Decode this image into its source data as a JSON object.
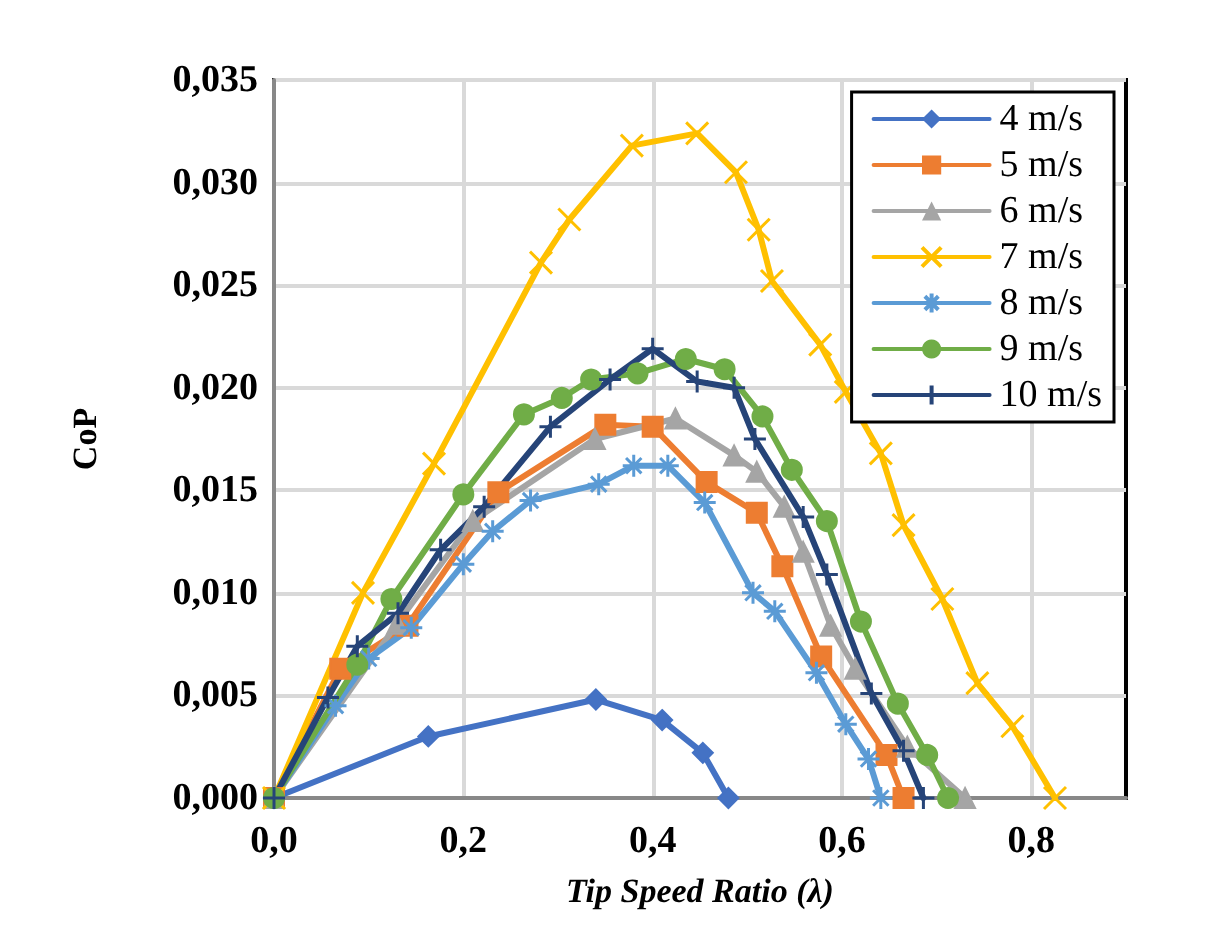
{
  "chart_data": {
    "type": "line",
    "xlabel": "Tip Speed Ratio (λ)",
    "ylabel": "CoP",
    "xlim": [
      0,
      0.9
    ],
    "ylim": [
      0,
      0.035
    ],
    "xticks": [
      {
        "value": 0,
        "label": "0,0"
      },
      {
        "value": 0.2,
        "label": "0,2"
      },
      {
        "value": 0.4,
        "label": "0,4"
      },
      {
        "value": 0.6,
        "label": "0,6"
      },
      {
        "value": 0.8,
        "label": "0,8"
      }
    ],
    "yticks": [
      {
        "value": 0,
        "label": "0,000"
      },
      {
        "value": 0.005,
        "label": "0,005"
      },
      {
        "value": 0.01,
        "label": "0,010"
      },
      {
        "value": 0.015,
        "label": "0,015"
      },
      {
        "value": 0.02,
        "label": "0,020"
      },
      {
        "value": 0.025,
        "label": "0,025"
      },
      {
        "value": 0.03,
        "label": "0,030"
      },
      {
        "value": 0.035,
        "label": "0,035"
      }
    ],
    "grid": true,
    "legend": "top right",
    "line_style": "solid",
    "series": [
      {
        "name": "4 m/s",
        "color": "#4472c4",
        "marker": "diamond",
        "x": [
          0,
          0.163,
          0.34,
          0.41,
          0.453,
          0.48
        ],
        "values": [
          0,
          0.003,
          0.0048,
          0.0038,
          0.0022,
          0
        ]
      },
      {
        "name": "5 m/s",
        "color": "#ed7d31",
        "marker": "square",
        "x": [
          0,
          0.07,
          0.141,
          0.237,
          0.35,
          0.4,
          0.457,
          0.51,
          0.537,
          0.578,
          0.647,
          0.665
        ],
        "values": [
          0,
          0.0063,
          0.0084,
          0.0149,
          0.0182,
          0.0181,
          0.0154,
          0.0139,
          0.0113,
          0.0069,
          0.0021,
          0
        ]
      },
      {
        "name": "6 m/s",
        "color": "#a5a5a5",
        "marker": "triangle",
        "x": [
          0,
          0.13,
          0.21,
          0.339,
          0.424,
          0.486,
          0.51,
          0.539,
          0.559,
          0.588,
          0.614,
          0.669,
          0.73
        ],
        "values": [
          0,
          0.0085,
          0.0135,
          0.0175,
          0.0185,
          0.0167,
          0.0159,
          0.0142,
          0.012,
          0.0084,
          0.0063,
          0.0025,
          0
        ]
      },
      {
        "name": "7 m/s",
        "color": "#ffc000",
        "marker": "cross",
        "x": [
          0,
          0.094,
          0.169,
          0.282,
          0.312,
          0.378,
          0.447,
          0.488,
          0.512,
          0.526,
          0.577,
          0.604,
          0.641,
          0.665,
          0.706,
          0.743,
          0.78,
          0.825
        ],
        "values": [
          0,
          0.01,
          0.0163,
          0.0261,
          0.0282,
          0.0318,
          0.0324,
          0.0305,
          0.0277,
          0.0252,
          0.0221,
          0.0198,
          0.0168,
          0.0133,
          0.0097,
          0.0056,
          0.0035,
          0
        ]
      },
      {
        "name": "8 m/s",
        "color": "#5b9bd5",
        "marker": "cross",
        "x": [
          0,
          0.065,
          0.1,
          0.145,
          0.2,
          0.231,
          0.271,
          0.343,
          0.38,
          0.416,
          0.455,
          0.506,
          0.529,
          0.573,
          0.604,
          0.628,
          0.641
        ],
        "values": [
          0,
          0.0045,
          0.0068,
          0.0083,
          0.0114,
          0.013,
          0.0145,
          0.0153,
          0.0162,
          0.0162,
          0.0144,
          0.01,
          0.0091,
          0.0061,
          0.0036,
          0.0019,
          0
        ]
      },
      {
        "name": "9 m/s",
        "color": "#70ad47",
        "marker": "circle",
        "x": [
          0,
          0.088,
          0.124,
          0.2,
          0.264,
          0.304,
          0.335,
          0.384,
          0.435,
          0.476,
          0.516,
          0.547,
          0.584,
          0.62,
          0.659,
          0.69,
          0.712
        ],
        "values": [
          0,
          0.0065,
          0.0097,
          0.0148,
          0.0187,
          0.0195,
          0.0204,
          0.0207,
          0.0214,
          0.0209,
          0.0186,
          0.016,
          0.0135,
          0.0086,
          0.0046,
          0.0021,
          0
        ]
      },
      {
        "name": "10 m/s",
        "color": "#264478",
        "marker": "plus",
        "x": [
          0,
          0.057,
          0.088,
          0.131,
          0.176,
          0.222,
          0.292,
          0.355,
          0.4,
          0.447,
          0.486,
          0.508,
          0.559,
          0.584,
          0.631,
          0.665,
          0.686
        ],
        "values": [
          0,
          0.0049,
          0.0074,
          0.009,
          0.0121,
          0.0142,
          0.0181,
          0.0204,
          0.0219,
          0.0203,
          0.02,
          0.0175,
          0.0137,
          0.0109,
          0.0051,
          0.0023,
          0
        ]
      }
    ]
  }
}
